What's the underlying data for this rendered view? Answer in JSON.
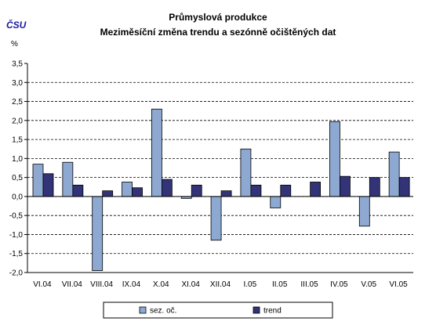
{
  "logo_text": "ČSU",
  "chart_data": {
    "type": "bar",
    "title": "Průmyslová produkce",
    "subtitle": "Meziměsíční změna trendu a sezónně očištěných dat",
    "ylabel": "%",
    "ylim": [
      -2.0,
      3.5
    ],
    "ytick_step": 0.5,
    "ytick_labels": [
      "3,5",
      "3,0",
      "2,5",
      "2,0",
      "1,5",
      "1,0",
      "0,5",
      "0,0",
      "-0,5",
      "-1,0",
      "-1,5",
      "-2,0"
    ],
    "grid": true,
    "legend_position": "bottom",
    "categories": [
      "VI.04",
      "VII.04",
      "VIII.04",
      "IX.04",
      "X.04",
      "XI.04",
      "XII.04",
      "I.05",
      "II.05",
      "III.05",
      "IV.05",
      "V.05",
      "VI.05"
    ],
    "series": [
      {
        "name": "sez. oč.",
        "color": "#8ea9d1",
        "values": [
          0.85,
          0.9,
          -1.95,
          0.38,
          2.3,
          -0.05,
          -1.15,
          1.25,
          -0.3,
          0.0,
          1.97,
          -0.78,
          1.17
        ]
      },
      {
        "name": "trend",
        "color": "#333377",
        "values": [
          0.6,
          0.3,
          0.15,
          0.23,
          0.45,
          0.3,
          0.15,
          0.3,
          0.3,
          0.38,
          0.53,
          0.5,
          0.5
        ]
      }
    ]
  }
}
